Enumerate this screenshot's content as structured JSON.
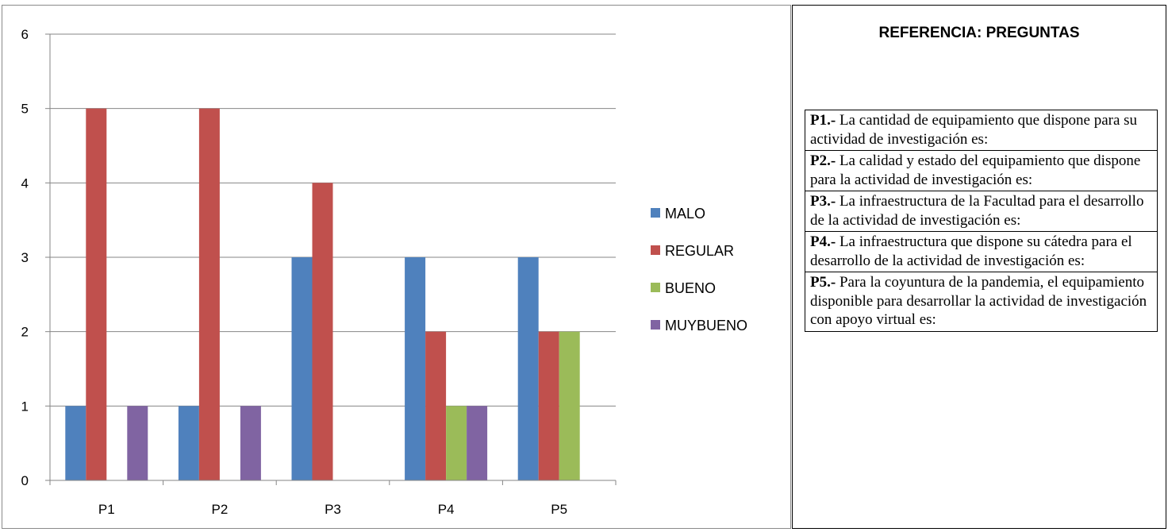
{
  "chart_data": {
    "type": "bar",
    "categories": [
      "P1",
      "P2",
      "P3",
      "P4",
      "P5"
    ],
    "series": [
      {
        "name": "MALO",
        "color": "#4f81bd",
        "values": [
          1,
          1,
          3,
          3,
          3
        ]
      },
      {
        "name": "REGULAR",
        "color": "#c0504d",
        "values": [
          5,
          5,
          4,
          2,
          2
        ]
      },
      {
        "name": "BUENO",
        "color": "#9bbb59",
        "values": [
          0,
          0,
          0,
          1,
          2
        ]
      },
      {
        "name": "MUYBUENO",
        "color": "#8064a2",
        "values": [
          1,
          1,
          0,
          1,
          0
        ]
      }
    ],
    "ylim": [
      0,
      6
    ],
    "yticks": [
      "0",
      "1",
      "2",
      "3",
      "4",
      "5",
      "6"
    ],
    "grid": true,
    "legend_position": "right"
  },
  "reference": {
    "title": "REFERENCIA: PREGUNTAS",
    "questions": [
      {
        "id": "P1.-",
        "text": " La cantidad de equipamiento que dispone para su actividad de investigación es:"
      },
      {
        "id": "P2.-",
        "text": " La calidad y estado del equipamiento que dispone para la actividad de investigación  es:"
      },
      {
        "id": "P3.-",
        "text": " La infraestructura de la Facultad para el desarrollo de la actividad de investigación es:"
      },
      {
        "id": "P4.-",
        "text": " La infraestructura que dispone su cátedra  para el desarrollo de la actividad de investigación es:"
      },
      {
        "id": "P5.-",
        "text": " Para la coyuntura de la pandemia, el equipamiento disponible para desarrollar la actividad de investigación con apoyo virtual es:"
      }
    ]
  }
}
